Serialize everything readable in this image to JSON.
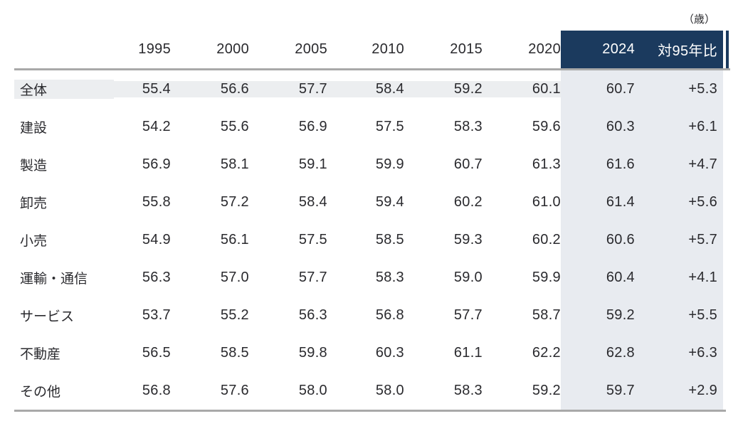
{
  "unit_label": "（歳）",
  "colors": {
    "navy": "#1b3a5e",
    "row_band": "#eceef0",
    "column_band": "#e8ebf0",
    "thick_border": "#a9a9a9",
    "text": "#2a2a2e",
    "header_text_on_navy": "#ffffff"
  },
  "chart_data": {
    "type": "table",
    "title": "",
    "unit": "歳",
    "columns": [
      "1995",
      "2000",
      "2005",
      "2010",
      "2015",
      "2020",
      "2024",
      "対95年比"
    ],
    "highlight_columns": [
      "2024",
      "対95年比"
    ],
    "rows": [
      {
        "label": "全体",
        "values": [
          "55.4",
          "56.6",
          "57.7",
          "58.4",
          "59.2",
          "60.1",
          "60.7",
          "+5.3"
        ],
        "highlight_row": true
      },
      {
        "label": "建設",
        "values": [
          "54.2",
          "55.6",
          "56.9",
          "57.5",
          "58.3",
          "59.6",
          "60.3",
          "+6.1"
        ],
        "highlight_row": false
      },
      {
        "label": "製造",
        "values": [
          "56.9",
          "58.1",
          "59.1",
          "59.9",
          "60.7",
          "61.3",
          "61.6",
          "+4.7"
        ],
        "highlight_row": false
      },
      {
        "label": "卸売",
        "values": [
          "55.8",
          "57.2",
          "58.4",
          "59.4",
          "60.2",
          "61.0",
          "61.4",
          "+5.6"
        ],
        "highlight_row": false
      },
      {
        "label": "小売",
        "values": [
          "54.9",
          "56.1",
          "57.5",
          "58.5",
          "59.3",
          "60.2",
          "60.6",
          "+5.7"
        ],
        "highlight_row": false
      },
      {
        "label": "運輸・通信",
        "values": [
          "56.3",
          "57.0",
          "57.7",
          "58.3",
          "59.0",
          "59.9",
          "60.4",
          "+4.1"
        ],
        "highlight_row": false
      },
      {
        "label": "サービス",
        "values": [
          "53.7",
          "55.2",
          "56.3",
          "56.8",
          "57.7",
          "58.7",
          "59.2",
          "+5.5"
        ],
        "highlight_row": false
      },
      {
        "label": "不動産",
        "values": [
          "56.5",
          "58.5",
          "59.8",
          "60.3",
          "61.1",
          "62.2",
          "62.8",
          "+6.3"
        ],
        "highlight_row": false
      },
      {
        "label": "その他",
        "values": [
          "56.8",
          "57.6",
          "58.0",
          "58.0",
          "58.3",
          "59.2",
          "59.7",
          "+2.9"
        ],
        "highlight_row": false
      }
    ]
  }
}
